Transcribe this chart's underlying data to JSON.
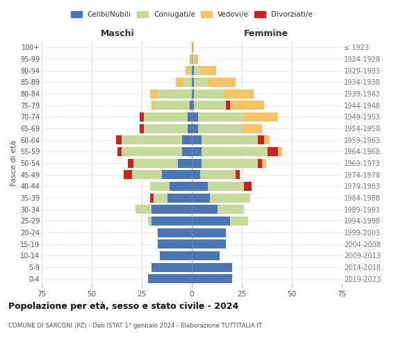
{
  "age_groups": [
    "0-4",
    "5-9",
    "10-14",
    "15-19",
    "20-24",
    "25-29",
    "30-34",
    "35-39",
    "40-44",
    "45-49",
    "50-54",
    "55-59",
    "60-64",
    "65-69",
    "70-74",
    "75-79",
    "80-84",
    "85-89",
    "90-94",
    "95-99",
    "100+"
  ],
  "birth_years": [
    "2019-2023",
    "2014-2018",
    "2009-2013",
    "2004-2008",
    "1999-2003",
    "1994-1998",
    "1989-1993",
    "1984-1988",
    "1979-1983",
    "1974-1978",
    "1969-1973",
    "1964-1968",
    "1959-1963",
    "1954-1958",
    "1949-1953",
    "1944-1948",
    "1939-1943",
    "1934-1938",
    "1929-1933",
    "1924-1928",
    "≤ 1923"
  ],
  "colors": {
    "celibi": "#4a76b5",
    "coniugati": "#c5d99a",
    "vedovi": "#f5c264",
    "divorziati": "#cc2222"
  },
  "maschi": {
    "celibi": [
      22,
      20,
      16,
      17,
      17,
      20,
      20,
      12,
      11,
      15,
      7,
      5,
      5,
      2,
      2,
      1,
      0,
      0,
      0,
      0,
      0
    ],
    "coniugati": [
      0,
      0,
      0,
      0,
      0,
      2,
      8,
      7,
      10,
      15,
      22,
      30,
      30,
      22,
      22,
      18,
      17,
      4,
      1,
      0,
      0
    ],
    "vedovi": [
      0,
      0,
      0,
      0,
      0,
      0,
      0,
      0,
      0,
      0,
      0,
      0,
      0,
      0,
      0,
      1,
      4,
      4,
      2,
      1,
      0
    ],
    "divorziati": [
      0,
      0,
      0,
      0,
      0,
      0,
      0,
      2,
      0,
      4,
      3,
      2,
      3,
      2,
      2,
      0,
      0,
      0,
      0,
      0,
      0
    ]
  },
  "femmine": {
    "celibi": [
      20,
      20,
      14,
      17,
      17,
      19,
      13,
      9,
      8,
      4,
      5,
      5,
      5,
      3,
      3,
      1,
      1,
      1,
      1,
      0,
      0
    ],
    "coniugati": [
      0,
      0,
      0,
      0,
      0,
      9,
      13,
      20,
      18,
      18,
      28,
      33,
      28,
      22,
      23,
      16,
      15,
      7,
      3,
      1,
      0
    ],
    "vedovi": [
      0,
      0,
      0,
      0,
      0,
      0,
      0,
      0,
      0,
      0,
      2,
      2,
      3,
      10,
      17,
      17,
      15,
      14,
      8,
      2,
      1
    ],
    "divorziati": [
      0,
      0,
      0,
      0,
      0,
      0,
      0,
      0,
      4,
      2,
      2,
      5,
      3,
      0,
      0,
      2,
      0,
      0,
      0,
      0,
      0
    ]
  },
  "title": "Popolazione per età, sesso e stato civile - 2024",
  "subtitle": "COMUNE DI SARCONI (PZ) - Dati ISTAT 1° gennaio 2024 - Elaborazione TUTTITALIA.IT",
  "xlabel_left": "Maschi",
  "xlabel_right": "Femmine",
  "ylabel_left": "Fasce di età",
  "xlim": 75,
  "background_color": "#ffffff",
  "grid_color": "#cccccc",
  "legend_labels": [
    "Celibi/Nubili",
    "Coniugati/e",
    "Vedovi/e",
    "Divorziati/e"
  ]
}
